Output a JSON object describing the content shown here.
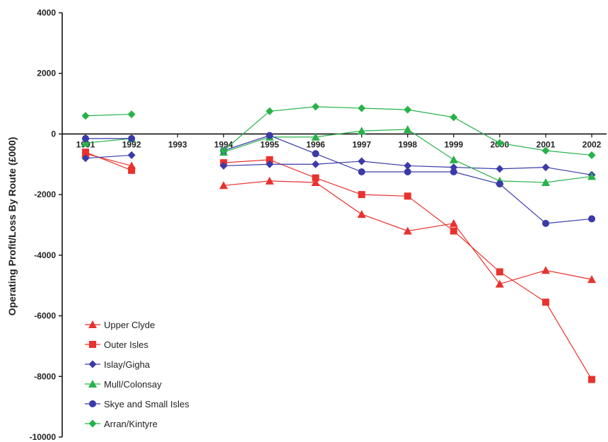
{
  "chart_data": {
    "type": "line",
    "title": "",
    "xlabel": "",
    "ylabel": "Operating Profit/Loss By Route (£000)",
    "categories": [
      "1991",
      "1992",
      "1993",
      "1994",
      "1995",
      "1996",
      "1997",
      "1998",
      "1999",
      "2000",
      "2001",
      "2002"
    ],
    "ylim": [
      -10000,
      4000
    ],
    "yticks": [
      4000,
      2000,
      0,
      -2000,
      -4000,
      -6000,
      -8000,
      -10000
    ],
    "grid": false,
    "legend": "bottom-left",
    "series": [
      {
        "name": "Upper Clyde",
        "marker": "triangle",
        "color": "#e8322e",
        "values": [
          -650,
          -1050,
          null,
          -1700,
          -1550,
          -1600,
          -2650,
          -3200,
          -2950,
          -4950,
          -4500,
          -4800
        ]
      },
      {
        "name": "Outer Isles",
        "marker": "square",
        "color": "#e8322e",
        "values": [
          -600,
          -1200,
          null,
          -950,
          -850,
          -1450,
          -2000,
          -2050,
          -3200,
          -4550,
          -5550,
          -8100
        ]
      },
      {
        "name": "Islay/Gigha",
        "marker": "diamond",
        "color": "#3a3aa8",
        "values": [
          -800,
          -700,
          null,
          -1050,
          -1000,
          -1000,
          -900,
          -1050,
          -1100,
          -1150,
          -1100,
          -1350
        ]
      },
      {
        "name": "Mull/Colonsay",
        "marker": "triangle",
        "color": "#27b24a",
        "values": [
          -300,
          -150,
          null,
          -600,
          -100,
          -100,
          100,
          150,
          -850,
          -1550,
          -1600,
          -1400
        ]
      },
      {
        "name": "Skye and Small Isles",
        "marker": "circle",
        "color": "#3a3aa8",
        "values": [
          -150,
          -150,
          null,
          -550,
          -50,
          -650,
          -1250,
          -1250,
          -1250,
          -1650,
          -2950,
          -2800
        ]
      },
      {
        "name": "Arran/Kintyre",
        "marker": "diamond",
        "color": "#27b24a",
        "values": [
          600,
          650,
          null,
          -550,
          750,
          900,
          850,
          800,
          550,
          -300,
          -550,
          -700
        ]
      }
    ]
  }
}
